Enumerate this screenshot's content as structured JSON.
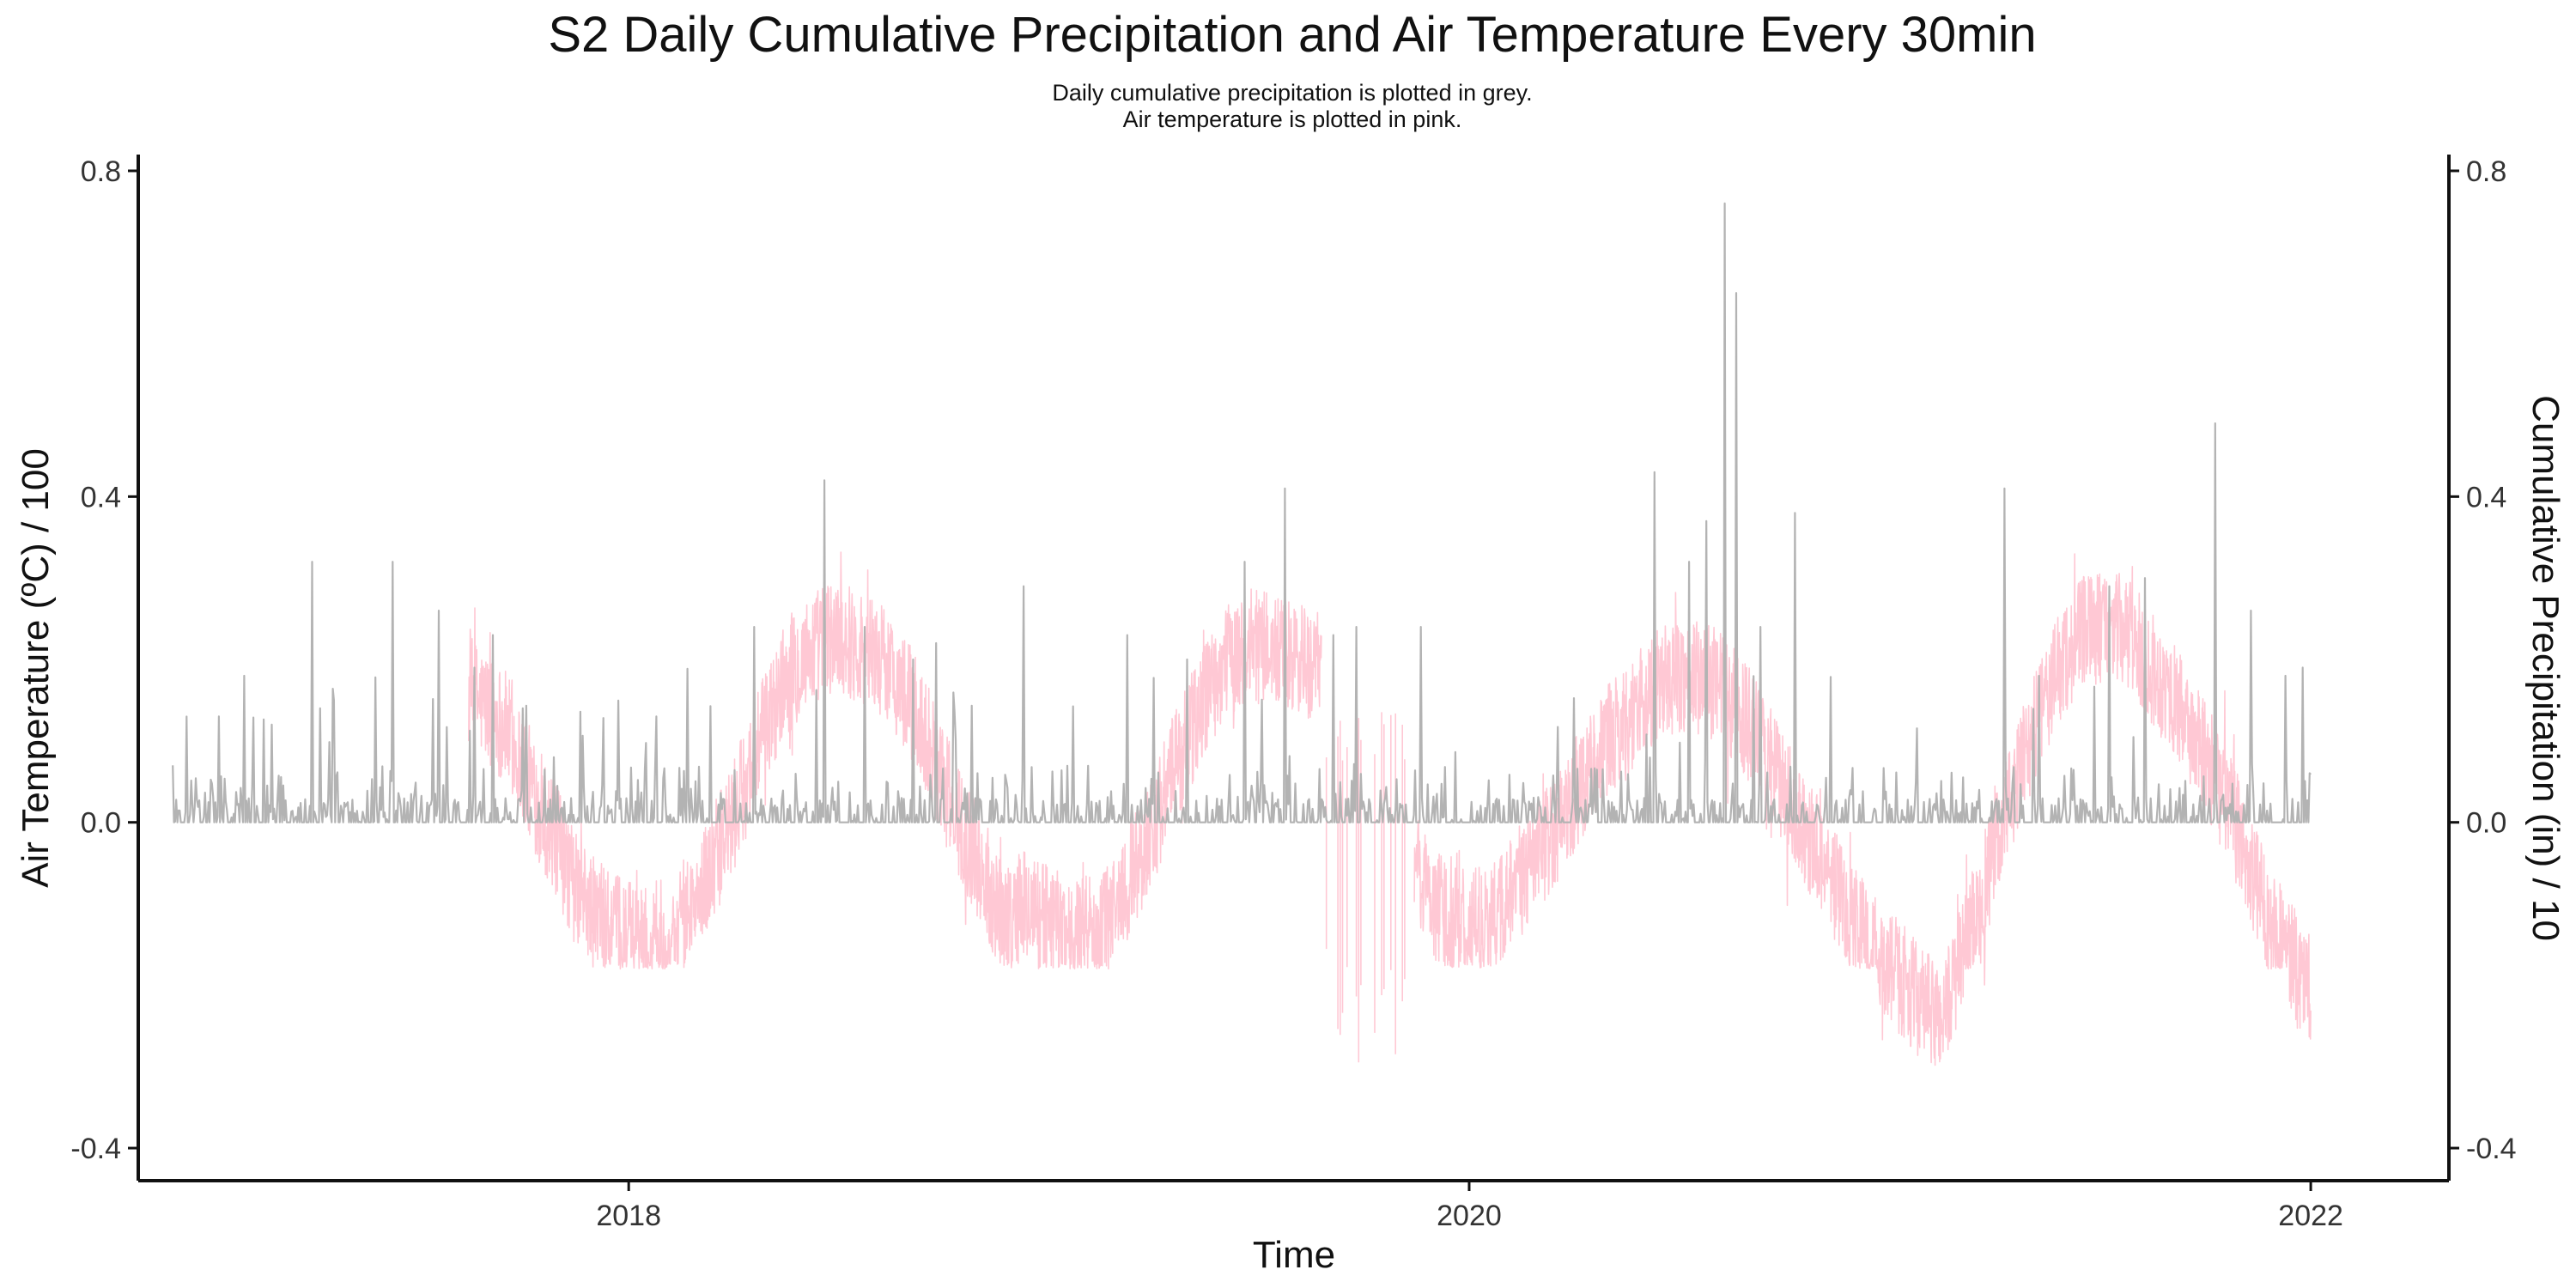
{
  "chart_data": {
    "type": "line",
    "title": "S2 Daily Cumulative Precipitation and Air Temperature Every 30min",
    "subtitle_lines": [
      "Daily cumulative precipitation is plotted in grey.",
      "Air temperature is plotted in pink."
    ],
    "xlabel": "Time",
    "ylabel": "Air Temperature (ºC) / 100",
    "y2label": "Cumulative Precipitation (in) / 10",
    "x_range": [
      "2016-11-01",
      "2022-05-01"
    ],
    "ylim": [
      -0.44,
      0.82
    ],
    "x_ticks": [
      {
        "label": "2018",
        "date": "2018-01-01"
      },
      {
        "label": "2020",
        "date": "2020-01-01"
      },
      {
        "label": "2022",
        "date": "2022-01-01"
      }
    ],
    "y_ticks": [
      {
        "label": "0.8",
        "value": 0.8
      },
      {
        "label": "0.4",
        "value": 0.4
      },
      {
        "label": "0.0",
        "value": 0.0
      },
      {
        "label": "-0.4",
        "value": -0.4
      }
    ],
    "y2_ticks": [
      {
        "label": "0.8",
        "value": 0.8
      },
      {
        "label": "0.4",
        "value": 0.4
      },
      {
        "label": "0.0",
        "value": 0.0
      },
      {
        "label": "-0.4",
        "value": -0.4
      }
    ],
    "grid": false,
    "legend": "none",
    "series": [
      {
        "key": "air_temperature",
        "color": "#ffc8d4",
        "start": "2017-08-15",
        "end": "2022-01-01",
        "points": [
          [
            "2017-08-15",
            0.16
          ],
          [
            "2017-09-01",
            0.14
          ],
          [
            "2017-09-15",
            0.12
          ],
          [
            "2017-10-01",
            0.07
          ],
          [
            "2017-10-15",
            0.02
          ],
          [
            "2017-11-01",
            -0.03
          ],
          [
            "2017-11-15",
            -0.08
          ],
          [
            "2017-12-01",
            -0.11
          ],
          [
            "2017-12-15",
            -0.13
          ],
          [
            "2018-01-01",
            -0.14
          ],
          [
            "2018-01-15",
            -0.14
          ],
          [
            "2018-02-01",
            -0.14
          ],
          [
            "2018-02-15",
            -0.12
          ],
          [
            "2018-03-01",
            -0.1
          ],
          [
            "2018-03-15",
            -0.05
          ],
          [
            "2018-04-01",
            0.0
          ],
          [
            "2018-04-15",
            0.06
          ],
          [
            "2018-05-01",
            0.12
          ],
          [
            "2018-05-15",
            0.17
          ],
          [
            "2018-06-01",
            0.2
          ],
          [
            "2018-06-15",
            0.22
          ],
          [
            "2018-07-01",
            0.23
          ],
          [
            "2018-07-15",
            0.22
          ],
          [
            "2018-08-01",
            0.21
          ],
          [
            "2018-08-15",
            0.19
          ],
          [
            "2018-09-01",
            0.15
          ],
          [
            "2018-09-15",
            0.11
          ],
          [
            "2018-10-01",
            0.05
          ],
          [
            "2018-10-15",
            0.0
          ],
          [
            "2018-11-01",
            -0.05
          ],
          [
            "2018-11-15",
            -0.1
          ],
          [
            "2018-12-01",
            -0.12
          ],
          [
            "2018-12-10",
            -0.1
          ],
          [
            "2019-01-10",
            -0.13
          ],
          [
            "2019-02-01",
            -0.14
          ],
          [
            "2019-02-15",
            -0.13
          ],
          [
            "2019-03-01",
            -0.1
          ],
          [
            "2019-03-15",
            -0.06
          ],
          [
            "2019-04-01",
            -0.01
          ],
          [
            "2019-04-15",
            0.05
          ],
          [
            "2019-05-01",
            0.1
          ],
          [
            "2019-05-15",
            0.15
          ],
          [
            "2019-06-01",
            0.19
          ],
          [
            "2019-06-15",
            0.21
          ],
          [
            "2019-07-01",
            0.22
          ],
          [
            "2019-07-15",
            0.21
          ],
          [
            "2019-08-01",
            0.2
          ],
          [
            "2019-08-25",
            0.19
          ],
          [
            "2019-11-15",
            -0.05
          ],
          [
            "2019-12-01",
            -0.1
          ],
          [
            "2019-12-15",
            -0.12
          ],
          [
            "2020-01-01",
            -0.13
          ],
          [
            "2020-01-15",
            -0.12
          ],
          [
            "2020-02-01",
            -0.1
          ],
          [
            "2020-03-01",
            -0.04
          ],
          [
            "2020-04-01",
            0.03
          ],
          [
            "2020-04-15",
            0.07
          ],
          [
            "2020-05-01",
            0.1
          ],
          [
            "2020-05-15",
            0.12
          ],
          [
            "2020-06-01",
            0.15
          ],
          [
            "2020-06-15",
            0.17
          ],
          [
            "2020-07-01",
            0.18
          ],
          [
            "2020-07-15",
            0.18
          ],
          [
            "2020-08-01",
            0.17
          ],
          [
            "2020-08-15",
            0.15
          ],
          [
            "2020-09-01",
            0.12
          ],
          [
            "2020-09-15",
            0.08
          ],
          [
            "2020-10-01",
            0.04
          ],
          [
            "2020-10-15",
            0.0
          ],
          [
            "2020-11-01",
            -0.04
          ],
          [
            "2020-11-15",
            -0.08
          ],
          [
            "2020-12-01",
            -0.12
          ],
          [
            "2020-12-15",
            -0.15
          ],
          [
            "2021-01-01",
            -0.18
          ],
          [
            "2021-01-15",
            -0.2
          ],
          [
            "2021-02-01",
            -0.23
          ],
          [
            "2021-02-15",
            -0.24
          ],
          [
            "2021-03-01",
            -0.18
          ],
          [
            "2021-03-15",
            -0.12
          ],
          [
            "2021-04-01",
            -0.04
          ],
          [
            "2021-04-15",
            0.03
          ],
          [
            "2021-05-01",
            0.09
          ],
          [
            "2021-05-15",
            0.15
          ],
          [
            "2021-06-01",
            0.2
          ],
          [
            "2021-06-15",
            0.23
          ],
          [
            "2021-07-01",
            0.24
          ],
          [
            "2021-07-15",
            0.24
          ],
          [
            "2021-08-01",
            0.22
          ],
          [
            "2021-08-15",
            0.19
          ],
          [
            "2021-09-01",
            0.16
          ],
          [
            "2021-09-15",
            0.12
          ],
          [
            "2021-10-01",
            0.08
          ],
          [
            "2021-10-15",
            0.04
          ],
          [
            "2021-11-01",
            -0.02
          ],
          [
            "2021-11-15",
            -0.08
          ],
          [
            "2021-12-01",
            -0.13
          ],
          [
            "2021-12-15",
            -0.17
          ],
          [
            "2022-01-01",
            -0.2
          ]
        ],
        "gaps": [
          [
            "2019-08-26",
            "2019-11-14"
          ]
        ],
        "band": 0.07,
        "floor": -0.18,
        "min": -0.38,
        "max": 0.36
      },
      {
        "key": "cumulative_precipitation",
        "color": "#b3b3b3",
        "start": "2016-12-01",
        "end": "2022-01-01",
        "peaks": [
          [
            "2016-12-01",
            0.07
          ],
          [
            "2017-01-10",
            0.13
          ],
          [
            "2017-02-01",
            0.18
          ],
          [
            "2017-02-25",
            0.12
          ],
          [
            "2017-04-01",
            0.32
          ],
          [
            "2017-04-20",
            0.15
          ],
          [
            "2017-06-10",
            0.32
          ],
          [
            "2017-07-20",
            0.26
          ],
          [
            "2017-08-20",
            0.19
          ],
          [
            "2017-09-05",
            0.23
          ],
          [
            "2017-10-01",
            0.14
          ],
          [
            "2018-01-25",
            0.13
          ],
          [
            "2018-04-20",
            0.24
          ],
          [
            "2018-06-20",
            0.42
          ],
          [
            "2018-07-25",
            0.24
          ],
          [
            "2018-09-05",
            0.2
          ],
          [
            "2018-09-25",
            0.22
          ],
          [
            "2018-12-10",
            0.29
          ],
          [
            "2019-03-10",
            0.23
          ],
          [
            "2019-05-01",
            0.2
          ],
          [
            "2019-06-20",
            0.32
          ],
          [
            "2019-07-25",
            0.41
          ],
          [
            "2019-09-05",
            0.23
          ],
          [
            "2019-09-25",
            0.24
          ],
          [
            "2019-11-20",
            0.24
          ],
          [
            "2020-06-10",
            0.43
          ],
          [
            "2020-07-10",
            0.32
          ],
          [
            "2020-07-25",
            0.37
          ],
          [
            "2020-08-10",
            0.76
          ],
          [
            "2020-08-20",
            0.65
          ],
          [
            "2020-09-10",
            0.24
          ],
          [
            "2020-10-10",
            0.38
          ],
          [
            "2021-04-10",
            0.41
          ],
          [
            "2021-05-10",
            0.18
          ],
          [
            "2021-07-10",
            0.29
          ],
          [
            "2021-08-10",
            0.3
          ],
          [
            "2021-10-10",
            0.49
          ],
          [
            "2021-11-10",
            0.26
          ],
          [
            "2021-12-10",
            0.18
          ],
          [
            "2021-12-25",
            0.19
          ]
        ],
        "typical_max": 0.09,
        "min": 0.0,
        "max": 0.76
      }
    ]
  }
}
